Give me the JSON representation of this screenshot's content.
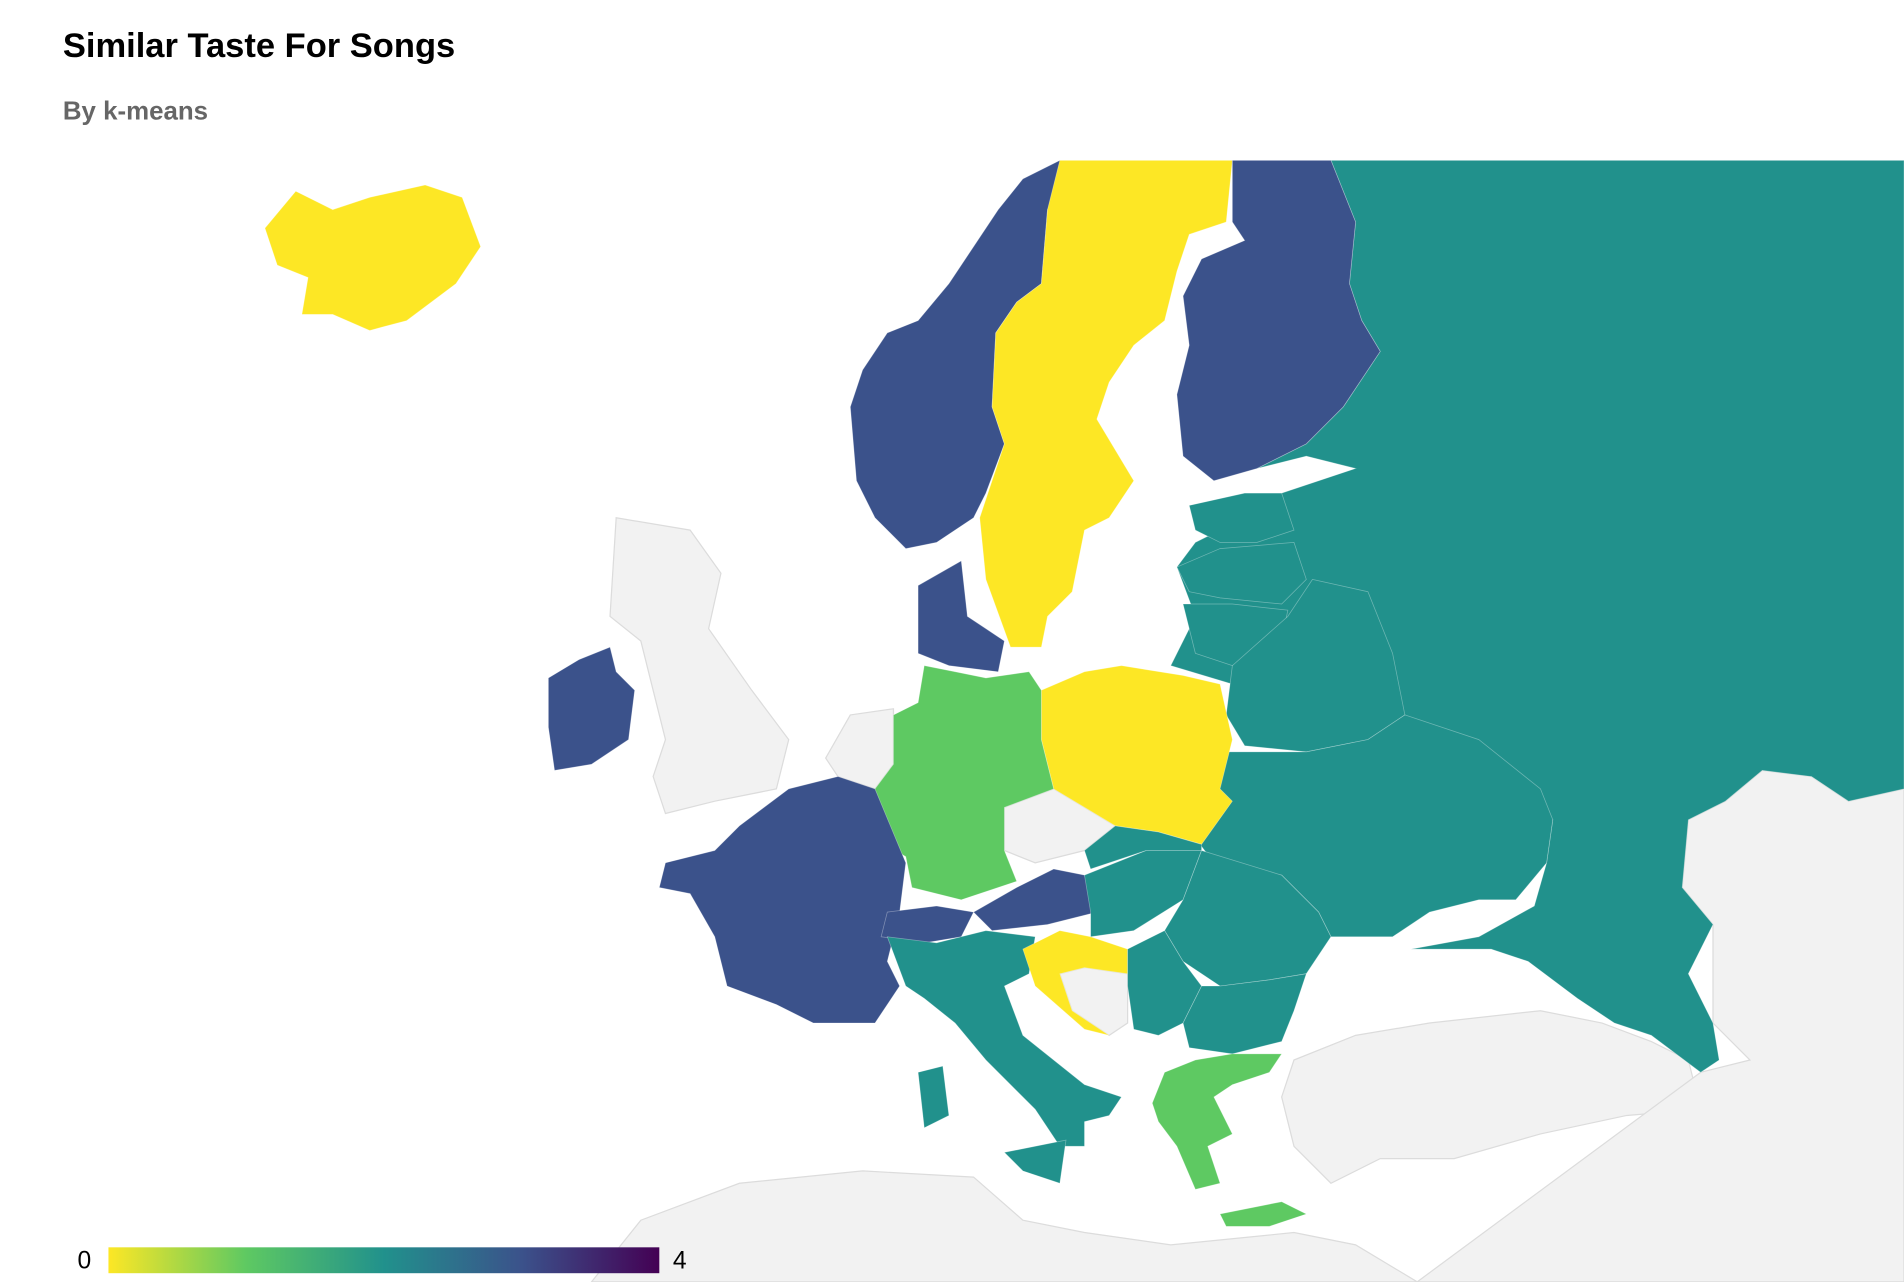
{
  "chart_data": {
    "type": "choropleth",
    "title": "Similar Taste For Songs",
    "subtitle": "By k-means",
    "values": [
      2,
      0,
      3,
      0,
      3,
      2,
      2,
      2,
      2,
      2,
      0,
      1,
      3,
      3,
      3,
      3,
      3,
      2,
      2,
      2,
      0,
      2,
      2,
      2,
      2,
      2,
      1,
      1
    ],
    "colorbar": {
      "min": 0,
      "max": 4,
      "ticks": [
        0,
        4
      ],
      "colors": [
        "#fde725",
        "#5ec962",
        "#21918c",
        "#3b528b",
        "#440154"
      ]
    }
  }
}
